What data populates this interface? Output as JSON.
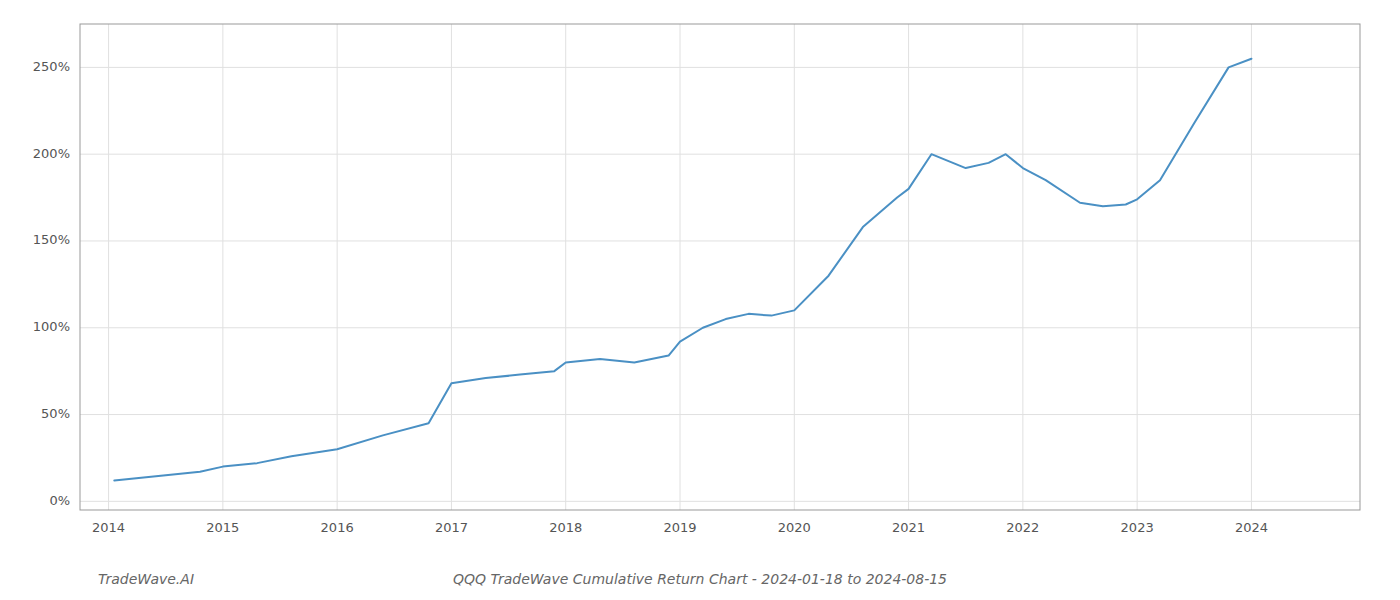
{
  "chart_data": {
    "type": "line",
    "title": "QQQ TradeWave Cumulative Return Chart - 2024-01-18 to 2024-08-15",
    "annotations": [
      "TradeWave.AI"
    ],
    "color": "#4a90c4",
    "x": [
      2014.05,
      2014.2,
      2014.5,
      2014.8,
      2015.0,
      2015.3,
      2015.6,
      2016.0,
      2016.4,
      2016.8,
      2017.0,
      2017.3,
      2017.6,
      2017.9,
      2018.0,
      2018.3,
      2018.6,
      2018.9,
      2019.0,
      2019.2,
      2019.4,
      2019.6,
      2019.8,
      2020.0,
      2020.3,
      2020.6,
      2020.9,
      2021.0,
      2021.2,
      2021.35,
      2021.5,
      2021.7,
      2021.85,
      2022.0,
      2022.2,
      2022.5,
      2022.7,
      2022.9,
      2023.0,
      2023.2,
      2023.5,
      2023.8,
      2024.0
    ],
    "values": [
      12,
      13,
      15,
      17,
      20,
      22,
      26,
      30,
      38,
      45,
      68,
      71,
      73,
      75,
      80,
      82,
      80,
      84,
      92,
      100,
      105,
      108,
      107,
      110,
      130,
      158,
      175,
      180,
      200,
      196,
      192,
      195,
      200,
      192,
      185,
      172,
      170,
      171,
      174,
      185,
      218,
      250,
      255
    ],
    "xlim": [
      2013.75,
      2024.95
    ],
    "xticks": [
      2014,
      2015,
      2016,
      2017,
      2018,
      2019,
      2020,
      2021,
      2022,
      2023,
      2024
    ],
    "ylim": [
      -5,
      275
    ],
    "yticks": [
      {
        "value": 0,
        "label": "0%"
      },
      {
        "value": 50,
        "label": "50%"
      },
      {
        "value": 100,
        "label": "100%"
      },
      {
        "value": 150,
        "label": "150%"
      },
      {
        "value": 200,
        "label": "200%"
      },
      {
        "value": 250,
        "label": "250%"
      }
    ],
    "grid": true
  }
}
